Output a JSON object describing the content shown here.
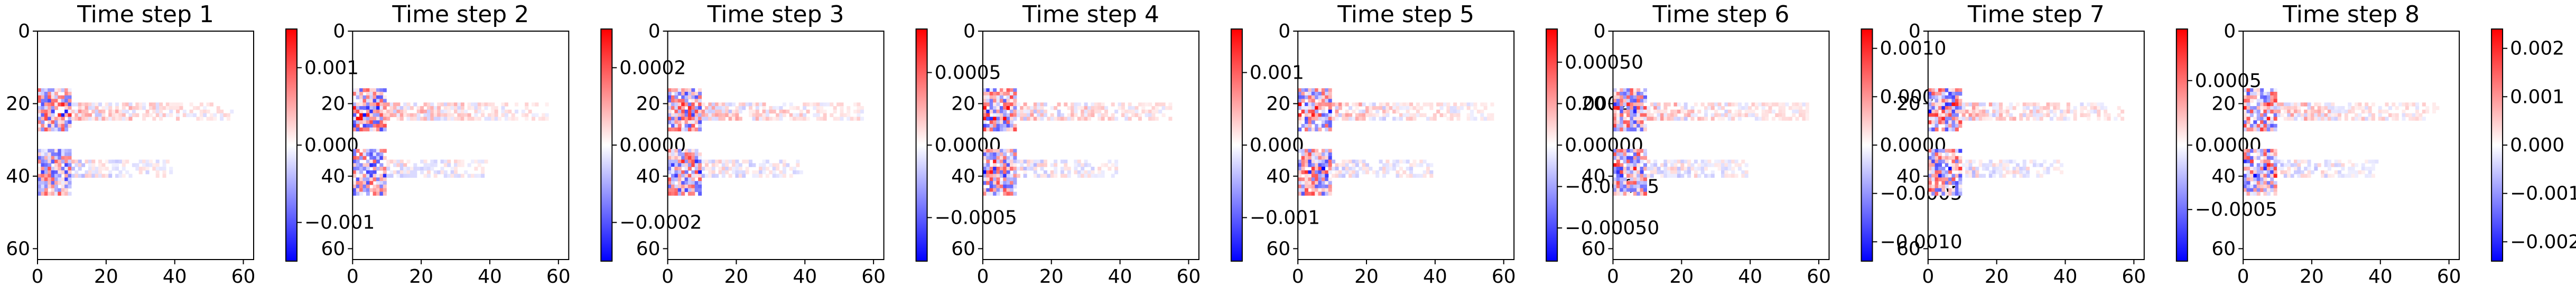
{
  "figure": {
    "colormap": {
      "name": "bwr",
      "low": "#0000ff",
      "mid": "#ffffff",
      "high": "#ff0000"
    }
  },
  "chart_data": [
    {
      "type": "heatmap",
      "title": "Time step 1",
      "xlim": [
        0,
        63
      ],
      "ylim": [
        63,
        0
      ],
      "xticks": [
        "0",
        "20",
        "40",
        "60"
      ],
      "yticks": [
        "0",
        "20",
        "40",
        "60"
      ],
      "colorbar": {
        "range": [
          -0.0015,
          0.0015
        ],
        "ticks": [
          {
            "value": 0.001,
            "label": "0.001"
          },
          {
            "value": 0,
            "label": "0.000"
          },
          {
            "value": -0.001,
            "label": "−0.001"
          }
        ]
      }
    },
    {
      "type": "heatmap",
      "title": "Time step 2",
      "xlim": [
        0,
        63
      ],
      "ylim": [
        63,
        0
      ],
      "xticks": [
        "0",
        "20",
        "40",
        "60"
      ],
      "yticks": [
        "0",
        "20",
        "40",
        "60"
      ],
      "colorbar": {
        "range": [
          -0.0003,
          0.0003
        ],
        "ticks": [
          {
            "value": 0.0002,
            "label": "0.0002"
          },
          {
            "value": 0,
            "label": "0.0000"
          },
          {
            "value": -0.0002,
            "label": "−0.0002"
          }
        ]
      }
    },
    {
      "type": "heatmap",
      "title": "Time step 3",
      "xlim": [
        0,
        63
      ],
      "ylim": [
        63,
        0
      ],
      "xticks": [
        "0",
        "20",
        "40",
        "60"
      ],
      "yticks": [
        "0",
        "20",
        "40",
        "60"
      ],
      "colorbar": {
        "range": [
          -0.0008,
          0.0008
        ],
        "ticks": [
          {
            "value": 0.0005,
            "label": "0.0005"
          },
          {
            "value": 0,
            "label": "0.0000"
          },
          {
            "value": -0.0005,
            "label": "−0.0005"
          }
        ]
      }
    },
    {
      "type": "heatmap",
      "title": "Time step 4",
      "xlim": [
        0,
        63
      ],
      "ylim": [
        63,
        0
      ],
      "xticks": [
        "0",
        "20",
        "40",
        "60"
      ],
      "yticks": [
        "0",
        "20",
        "40",
        "60"
      ],
      "colorbar": {
        "range": [
          -0.0016,
          0.0016
        ],
        "ticks": [
          {
            "value": 0.001,
            "label": "0.001"
          },
          {
            "value": 0,
            "label": "0.000"
          },
          {
            "value": -0.001,
            "label": "−0.001"
          }
        ]
      }
    },
    {
      "type": "heatmap",
      "title": "Time step 5",
      "xlim": [
        0,
        63
      ],
      "ylim": [
        63,
        0
      ],
      "xticks": [
        "0",
        "20",
        "40",
        "60"
      ],
      "yticks": [
        "0",
        "20",
        "40",
        "60"
      ],
      "colorbar": {
        "range": [
          -0.0007,
          0.0007
        ],
        "ticks": [
          {
            "value": 0.0005,
            "label": "0.00050"
          },
          {
            "value": 0.00025,
            "label": "0.00025"
          },
          {
            "value": 0,
            "label": "0.00000"
          },
          {
            "value": -0.00025,
            "label": "−0.00025"
          },
          {
            "value": -0.0005,
            "label": "−0.00050"
          }
        ]
      }
    },
    {
      "type": "heatmap",
      "title": "Time step 6",
      "xlim": [
        0,
        63
      ],
      "ylim": [
        63,
        0
      ],
      "xticks": [
        "0",
        "20",
        "40",
        "60"
      ],
      "yticks": [
        "0",
        "20",
        "40",
        "60"
      ],
      "colorbar": {
        "range": [
          -0.0012,
          0.0012
        ],
        "ticks": [
          {
            "value": 0.001,
            "label": "0.0010"
          },
          {
            "value": 0.0005,
            "label": "0.0005"
          },
          {
            "value": 0,
            "label": "0.0000"
          },
          {
            "value": -0.0005,
            "label": "−0.0005"
          },
          {
            "value": -0.001,
            "label": "−0.0010"
          }
        ]
      }
    },
    {
      "type": "heatmap",
      "title": "Time step 7",
      "xlim": [
        0,
        63
      ],
      "ylim": [
        63,
        0
      ],
      "xticks": [
        "0",
        "20",
        "40",
        "60"
      ],
      "yticks": [
        "0",
        "20",
        "40",
        "60"
      ],
      "colorbar": {
        "range": [
          -0.0009,
          0.0009
        ],
        "ticks": [
          {
            "value": 0.0005,
            "label": "0.0005"
          },
          {
            "value": 0,
            "label": "0.0000"
          },
          {
            "value": -0.0005,
            "label": "−0.0005"
          }
        ]
      }
    },
    {
      "type": "heatmap",
      "title": "Time step 8",
      "xlim": [
        0,
        63
      ],
      "ylim": [
        63,
        0
      ],
      "xticks": [
        "0",
        "20",
        "40",
        "60"
      ],
      "yticks": [
        "0",
        "20",
        "40",
        "60"
      ],
      "colorbar": {
        "range": [
          -0.0024,
          0.0024
        ],
        "ticks": [
          {
            "value": 0.002,
            "label": "0.002"
          },
          {
            "value": 0.001,
            "label": "0.001"
          },
          {
            "value": 0,
            "label": "0.000"
          },
          {
            "value": -0.001,
            "label": "−0.001"
          },
          {
            "value": -0.002,
            "label": "−0.002"
          }
        ]
      }
    }
  ]
}
